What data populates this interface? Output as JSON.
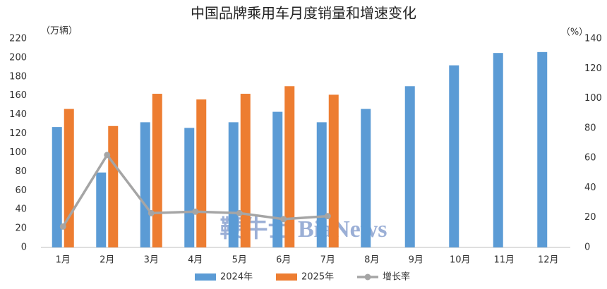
{
  "chart_data": {
    "type": "bar",
    "title": "中国品牌乘用车月度销量和增速变化",
    "y_label": "（万辆）",
    "y2_label": "（%）",
    "watermark": "鞭牛士 BiaNews",
    "categories": [
      "1月",
      "2月",
      "3月",
      "4月",
      "5月",
      "6月",
      "7月",
      "8月",
      "9月",
      "10月",
      "11月",
      "12月"
    ],
    "series": [
      {
        "name": "2024年",
        "type": "bar",
        "color": "#5b9bd5",
        "values": [
          127,
          79,
          132,
          126,
          132,
          143,
          132,
          146,
          170,
          192,
          205,
          206
        ]
      },
      {
        "name": "2025年",
        "type": "bar",
        "color": "#ed7d31",
        "values": [
          146,
          128,
          162,
          156,
          162,
          170,
          161,
          null,
          null,
          null,
          null,
          null
        ]
      },
      {
        "name": "增长率",
        "type": "line",
        "axis": "y2",
        "color": "#a5a5a5",
        "values": [
          14,
          62,
          23,
          24,
          23,
          19,
          21,
          null,
          null,
          null,
          null,
          null
        ]
      }
    ],
    "ylim": [
      0,
      220
    ],
    "yticks": [
      0,
      20,
      40,
      60,
      80,
      100,
      120,
      140,
      160,
      180,
      200,
      220
    ],
    "y2lim": [
      0,
      140
    ],
    "y2ticks": [
      0,
      20,
      40,
      60,
      80,
      100,
      120,
      140
    ],
    "legend": "bottom"
  }
}
